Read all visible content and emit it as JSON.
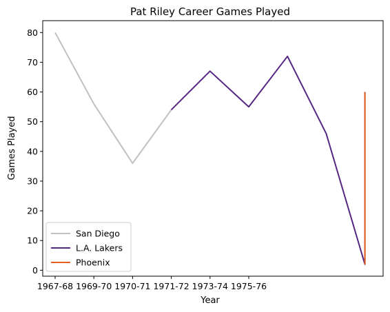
{
  "chart_data": {
    "type": "line",
    "title": "Pat Riley Career Games Played",
    "xlabel": "Year",
    "ylabel": "Games Played",
    "ylim": [
      -2,
      84
    ],
    "yticks": [
      0,
      10,
      20,
      30,
      40,
      50,
      60,
      70,
      80
    ],
    "xticks": [
      {
        "label": "1967-68",
        "x": 0
      },
      {
        "label": "1969-70",
        "x": 1
      },
      {
        "label": "1970-71",
        "x": 2
      },
      {
        "label": "1971-72",
        "x": 3
      },
      {
        "label": "1973-74",
        "x": 4
      },
      {
        "label": "1975-76",
        "x": 5
      }
    ],
    "legend_position": "lower-left",
    "grid": false,
    "series": [
      {
        "name": "San Diego",
        "color": "#c0c0c0",
        "x": [
          0,
          1,
          2,
          3
        ],
        "y": [
          80,
          56,
          36,
          54
        ]
      },
      {
        "name": "L.A. Lakers",
        "color": "#552583",
        "x": [
          3,
          4,
          5,
          6,
          7,
          8,
          8
        ],
        "y": [
          54,
          67,
          55,
          72,
          46,
          2,
          60
        ]
      },
      {
        "name": "Phoenix",
        "color": "#e56020",
        "x": [
          8,
          8
        ],
        "y": [
          60,
          2
        ]
      }
    ]
  }
}
